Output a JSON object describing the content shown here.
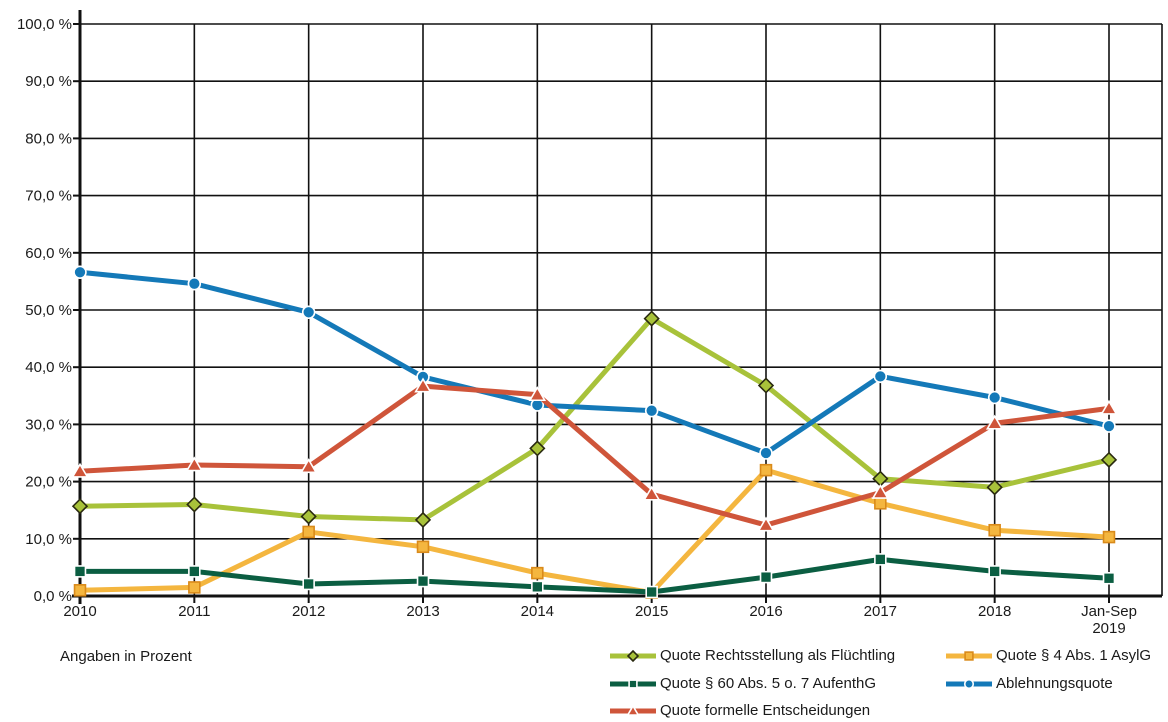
{
  "chart_data": {
    "type": "line",
    "categories": [
      "2010",
      "2011",
      "2012",
      "2013",
      "2014",
      "2015",
      "2016",
      "2017",
      "2018",
      "Jan-Sep 2019"
    ],
    "category_labels": [
      [
        "2010"
      ],
      [
        "2011"
      ],
      [
        "2012"
      ],
      [
        "2013"
      ],
      [
        "2014"
      ],
      [
        "2015"
      ],
      [
        "2016"
      ],
      [
        "2017"
      ],
      [
        "2018"
      ],
      [
        "Jan-Sep",
        "2019"
      ]
    ],
    "ylim": [
      0,
      100
    ],
    "y_ticks": [
      0,
      10,
      20,
      30,
      40,
      50,
      60,
      70,
      80,
      90,
      100
    ],
    "y_tick_labels": [
      "0,0 %",
      "10,0 %",
      "20,0 %",
      "30,0 %",
      "40,0 %",
      "50,0 %",
      "60,0 %",
      "70,0 %",
      "80,0 %",
      "90,0 %",
      "100,0 %"
    ],
    "grid": true,
    "legend_position": "bottom-right",
    "series": [
      {
        "name": "Quote Rechtsstellung als Flüchtling",
        "color": "#a8c23a",
        "marker": "diamond",
        "values": [
          15.7,
          16.0,
          13.9,
          13.3,
          25.8,
          48.5,
          36.8,
          20.5,
          19.0,
          23.8
        ]
      },
      {
        "name": "Quote § 4 Abs. 1 AsylG",
        "color": "#f4b63f",
        "marker": "square",
        "values": [
          1.0,
          1.5,
          11.2,
          8.6,
          4.0,
          0.6,
          22.0,
          16.2,
          11.5,
          10.3
        ]
      },
      {
        "name": "Quote § 60 Abs. 5 o. 7 AufenthG",
        "color": "#0b5e42",
        "marker": "square",
        "values": [
          4.3,
          4.3,
          2.1,
          2.6,
          1.6,
          0.7,
          3.3,
          6.4,
          4.3,
          3.1
        ]
      },
      {
        "name": "Ablehnungsquote",
        "color": "#1479b8",
        "marker": "circle",
        "values": [
          56.6,
          54.6,
          49.6,
          38.3,
          33.4,
          32.4,
          25.0,
          38.4,
          34.7,
          29.7
        ]
      },
      {
        "name": "Quote formelle Entscheidungen",
        "color": "#cf553a",
        "marker": "triangle",
        "values": [
          21.8,
          22.9,
          22.6,
          36.7,
          35.2,
          17.8,
          12.4,
          18.1,
          30.2,
          32.8
        ]
      }
    ]
  },
  "note": "Angaben in Prozent"
}
